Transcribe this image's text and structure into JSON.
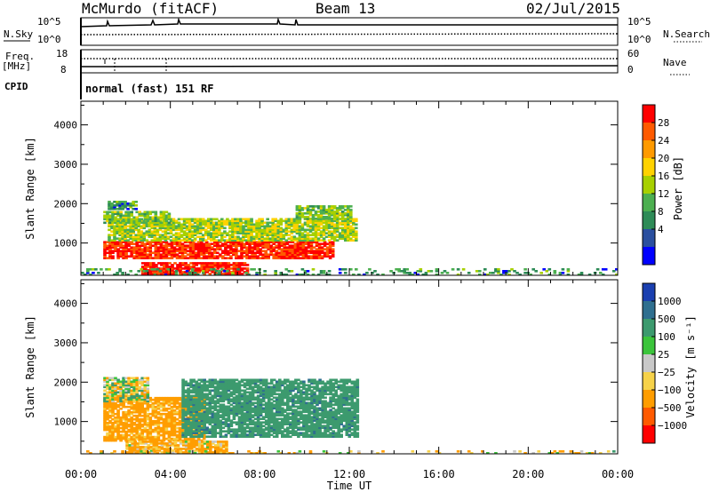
{
  "header": {
    "station": "McMurdo (fitACF)",
    "beam": "Beam 13",
    "date": "02/Jul/2015"
  },
  "param_panels": {
    "nsky_label": "N.Sky",
    "nsky_ticks": [
      "10^5",
      "10^0"
    ],
    "nsearch_label": "N.Search",
    "nsearch_ticks": [
      "10^5",
      "10^0"
    ],
    "freq_label": "Freq.",
    "freq_unit": "[MHz]",
    "freq_ticks": [
      "18",
      "8"
    ],
    "nave_label": "Nave",
    "nave_ticks": [
      "60",
      "0"
    ],
    "cpid_label": "CPID",
    "cpid_value": "normal (fast) 151 RF"
  },
  "chart_data": [
    {
      "type": "heatmap",
      "name": "power",
      "xlabel": "Time UT",
      "ylabel": "Slant Range [km]",
      "xlim": [
        0,
        24
      ],
      "ylim": [
        180,
        4600
      ],
      "yticks": [
        1000,
        2000,
        3000,
        4000
      ],
      "colorbar": {
        "label": "Power [dB]",
        "ticks": [
          "28",
          "24",
          "20",
          "16",
          "12",
          "8",
          "4"
        ],
        "colors": [
          "#ff0000",
          "#ff5a00",
          "#ff9a00",
          "#ffd200",
          "#a7d000",
          "#4caf50",
          "#2e8b57",
          "#2a4f9f",
          "#0000ff"
        ]
      },
      "regions": [
        {
          "t0": 1.0,
          "t1": 11.3,
          "r0": 600,
          "r1": 1050,
          "value_db": 27
        },
        {
          "t0": 1.2,
          "t1": 12.3,
          "r0": 1050,
          "r1": 1600,
          "value_db": 12
        },
        {
          "t0": 2.7,
          "t1": 7.5,
          "r0": 200,
          "r1": 480,
          "value_db": 28
        },
        {
          "t0": 1.0,
          "t1": 4.0,
          "r0": 1500,
          "r1": 1800,
          "value_db": 10
        },
        {
          "t0": 1.2,
          "t1": 2.5,
          "r0": 1850,
          "r1": 2050,
          "value_db": 6
        },
        {
          "t0": 9.6,
          "t1": 12.0,
          "r0": 1600,
          "r1": 1950,
          "value_db": 10
        },
        {
          "t0": 0.0,
          "t1": 24.0,
          "r0": 180,
          "r1": 320,
          "value_db": 6
        }
      ]
    },
    {
      "type": "heatmap",
      "name": "velocity",
      "xlabel": "Time UT",
      "ylabel": "Slant Range [km]",
      "xlim": [
        0,
        24
      ],
      "ylim": [
        180,
        4600
      ],
      "yticks": [
        1000,
        2000,
        3000,
        4000
      ],
      "xticks": [
        "00:00",
        "04:00",
        "08:00",
        "12:00",
        "16:00",
        "20:00",
        "00:00"
      ],
      "colorbar": {
        "label": "Velocity [m s⁻¹]",
        "ticks": [
          "1000",
          "500",
          "100",
          "25",
          "−25",
          "−100",
          "−500",
          "−1000"
        ],
        "colors": [
          "#1a3fb0",
          "#2f6f8f",
          "#3c9a6e",
          "#3bc43b",
          "#c8c8c8",
          "#f6d24a",
          "#ff9d00",
          "#ff5a00",
          "#ff0000"
        ]
      },
      "regions": [
        {
          "t0": 1.0,
          "t1": 5.5,
          "r0": 500,
          "r1": 1600,
          "value_ms": -150
        },
        {
          "t0": 4.5,
          "t1": 12.3,
          "r0": 600,
          "r1": 2050,
          "value_ms": 200
        },
        {
          "t0": 2.0,
          "t1": 6.5,
          "r0": 200,
          "r1": 500,
          "value_ms": -100
        },
        {
          "t0": 1.0,
          "t1": 3.0,
          "r0": 1500,
          "r1": 2100,
          "value_ms": 0
        },
        {
          "t0": 0.0,
          "t1": 24.0,
          "r0": 180,
          "r1": 260,
          "value_ms": -50
        }
      ]
    }
  ]
}
